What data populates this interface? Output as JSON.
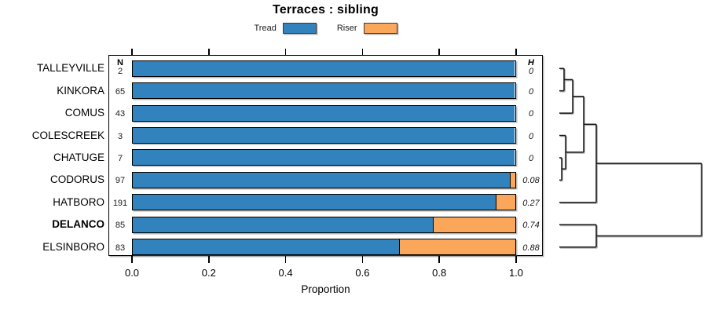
{
  "title": "Terraces : sibling",
  "legend": {
    "items": [
      {
        "id": "tread",
        "label": "Tread",
        "color": "#3182BD"
      },
      {
        "id": "riser",
        "label": "Riser",
        "color": "#FAA65B"
      }
    ]
  },
  "columns": {
    "n_header": "N",
    "h_header": "H"
  },
  "x_axis": {
    "label": "Proportion",
    "ticks": [
      {
        "value": 0.0,
        "label": "0.0"
      },
      {
        "value": 0.2,
        "label": "0.2"
      },
      {
        "value": 0.4,
        "label": "0.4"
      },
      {
        "value": 0.6,
        "label": "0.6"
      },
      {
        "value": 0.8,
        "label": "0.8"
      },
      {
        "value": 1.0,
        "label": "1.0"
      }
    ]
  },
  "chart_data": {
    "type": "bar",
    "orientation": "horizontal",
    "stacked": true,
    "grid": false,
    "legend_position": "top",
    "title": "Terraces : sibling",
    "xlabel": "Proportion",
    "xlim": [
      0,
      1
    ],
    "categories": [
      "TALLEYVILLE",
      "KINKORA",
      "COMUS",
      "COLESCREEK",
      "CHATUGE",
      "CODORUS",
      "HATBORO",
      "DELANCO",
      "ELSINBORO"
    ],
    "emphasized_category": "DELANCO",
    "n_values": [
      2,
      65,
      43,
      3,
      7,
      97,
      191,
      85,
      83
    ],
    "h_values": [
      "0",
      "0",
      "0",
      "0",
      "0",
      "0.08",
      "0.27",
      "0.74",
      "0.88"
    ],
    "series": [
      {
        "name": "Tread",
        "color": "#3182BD",
        "values": [
          1,
          1,
          1,
          1,
          1,
          0.99,
          0.953,
          0.788,
          0.699
        ]
      },
      {
        "name": "Riser",
        "color": "#FAA65B",
        "values": [
          0,
          0,
          0,
          0,
          0,
          0.01,
          0.047,
          0.212,
          0.301
        ]
      }
    ],
    "dendrogram": {
      "leaf_x": 712,
      "merges": [
        {
          "id": "m1",
          "children": [
            "TALLEYVILLE",
            "KINKORA"
          ],
          "x": 718
        },
        {
          "id": "m2",
          "children": [
            "m1",
            "COMUS"
          ],
          "x": 729
        },
        {
          "id": "m3",
          "children": [
            "CHATUGE",
            "CODORUS"
          ],
          "x": 715
        },
        {
          "id": "m4",
          "children": [
            "COLESCREEK",
            "m3"
          ],
          "x": 720
        },
        {
          "id": "m5",
          "children": [
            "m2",
            "m4"
          ],
          "x": 743
        },
        {
          "id": "m6",
          "children": [
            "m5",
            "HATBORO"
          ],
          "x": 759
        },
        {
          "id": "m7",
          "children": [
            "DELANCO",
            "ELSINBORO"
          ],
          "x": 759
        },
        {
          "id": "root",
          "children": [
            "m6",
            "m7"
          ],
          "x": 893
        }
      ]
    }
  }
}
